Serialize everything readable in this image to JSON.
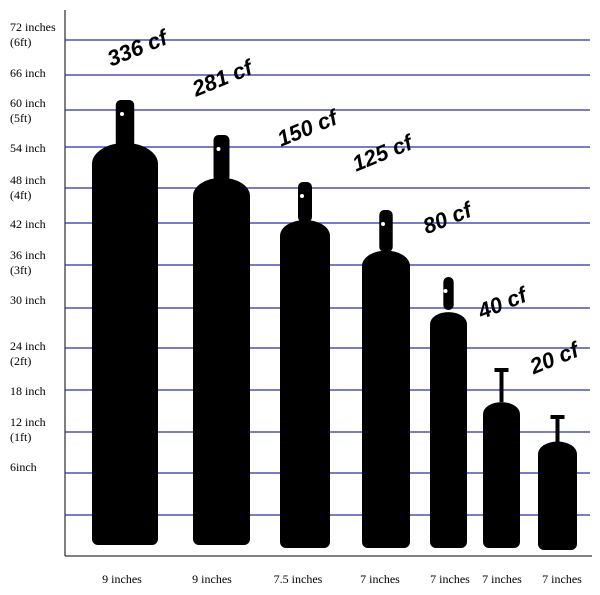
{
  "height_labels": [
    {
      "lines": [
        "72 inches",
        "(6ft)"
      ]
    },
    {
      "lines": [
        "66 inch"
      ]
    },
    {
      "lines": [
        "60 inch",
        "(5ft)"
      ]
    },
    {
      "lines": [
        "54 inch"
      ]
    },
    {
      "lines": [
        "48 inch",
        "(4ft)"
      ]
    },
    {
      "lines": [
        "42 inch"
      ]
    },
    {
      "lines": [
        "36 inch",
        "(3ft)"
      ]
    },
    {
      "lines": [
        "30 inch"
      ]
    },
    {
      "lines": [
        "24 inch",
        "(2ft)"
      ]
    },
    {
      "lines": [
        "18 inch"
      ]
    },
    {
      "lines": [
        "12 inch",
        "(1ft)"
      ]
    },
    {
      "lines": [
        "6inch"
      ]
    }
  ],
  "cylinders": [
    {
      "capacity": "336 cf",
      "diameter": "9 inches"
    },
    {
      "capacity": "281 cf",
      "diameter": "9 inches"
    },
    {
      "capacity": "150 cf",
      "diameter": "7.5 inches"
    },
    {
      "capacity": "125 cf",
      "diameter": "7 inches"
    },
    {
      "capacity": "80 cf",
      "diameter": "7 inches"
    },
    {
      "capacity": "40 cf",
      "diameter": "7 inches"
    },
    {
      "capacity": "20 cf",
      "diameter": "7 inches"
    }
  ]
}
